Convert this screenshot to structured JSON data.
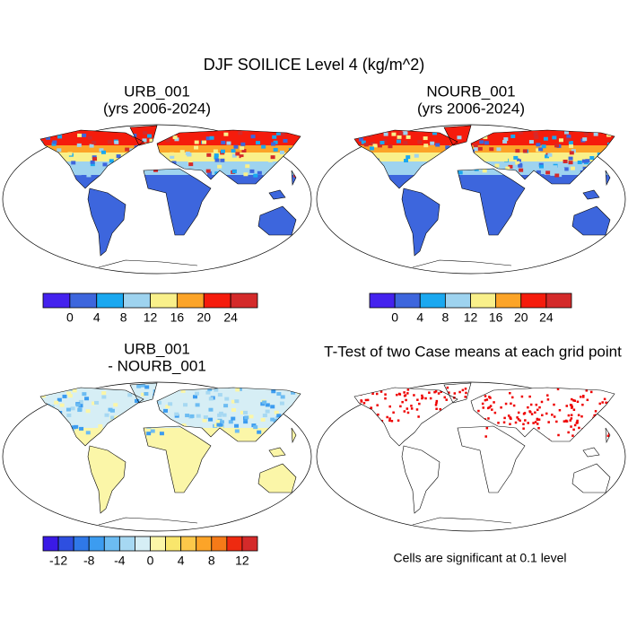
{
  "title": "DJF SOILICE Level 4 (kg/m^2)",
  "panels": [
    {
      "title": [
        "URB_001",
        "(yrs 2006-2024)"
      ],
      "colorbar": {
        "colors": [
          "#4422ee",
          "#3d66dd",
          "#1aa8f0",
          "#9ed3ef",
          "#f9f08a",
          "#fca428",
          "#f51c0c",
          "#d42a2a"
        ],
        "ticks": [
          0,
          4,
          8,
          12,
          16,
          20,
          24
        ]
      }
    },
    {
      "title": [
        "NOURB_001",
        "(yrs 2006-2024)"
      ],
      "colorbar": {
        "colors": [
          "#4422ee",
          "#3d66dd",
          "#1aa8f0",
          "#9ed3ef",
          "#f9f08a",
          "#fca428",
          "#f51c0c",
          "#d42a2a"
        ],
        "ticks": [
          0,
          4,
          8,
          12,
          16,
          20,
          24
        ]
      }
    },
    {
      "title": [
        "URB_001",
        "- NOURB_001"
      ],
      "colorbar": {
        "colors": [
          "#3a1ae6",
          "#2e4fe0",
          "#2f78e8",
          "#3c9cf0",
          "#6cbcf2",
          "#a6d8f2",
          "#d6eef5",
          "#fbf6a8",
          "#f9e66c",
          "#fcc84a",
          "#fca428",
          "#f57a18",
          "#ee2a10",
          "#d42a2a"
        ],
        "ticks": [
          -12,
          -8,
          -4,
          0,
          4,
          8,
          12
        ]
      }
    },
    {
      "title": [
        "T-Test of two Case means at each grid point"
      ],
      "note": "Cells are significant at 0.1 level"
    }
  ]
}
